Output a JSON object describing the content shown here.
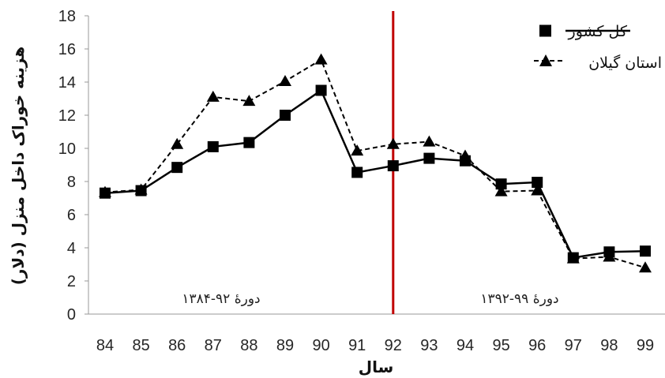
{
  "chart_data": {
    "type": "line",
    "xlabel": "سال",
    "ylabel": "هزینه خوراک داخل منزل (دلار)",
    "x": [
      "84",
      "85",
      "86",
      "87",
      "88",
      "89",
      "90",
      "91",
      "92",
      "93",
      "94",
      "95",
      "96",
      "97",
      "98",
      "99"
    ],
    "ylim": [
      0,
      18
    ],
    "yticks": [
      "0",
      "2",
      "4",
      "6",
      "8",
      "10",
      "12",
      "14",
      "16",
      "18"
    ],
    "grid": false,
    "legend_position": "top-right",
    "series": [
      {
        "name": "کل کشور",
        "marker": "square",
        "line": "solid",
        "color": "#000000",
        "values": [
          7.3,
          7.45,
          8.85,
          10.1,
          10.35,
          12.0,
          13.5,
          8.55,
          8.95,
          9.4,
          9.25,
          7.85,
          7.95,
          3.4,
          3.75,
          3.8
        ]
      },
      {
        "name": "استان گیلان",
        "marker": "triangle",
        "line": "dashed",
        "color": "#000000",
        "values": [
          7.35,
          7.5,
          10.25,
          13.1,
          12.85,
          14.05,
          15.35,
          9.85,
          10.25,
          10.4,
          9.55,
          7.4,
          7.45,
          3.35,
          3.45,
          2.8
        ]
      }
    ],
    "divider": {
      "x": "92",
      "color": "#c00000"
    },
    "annotations": [
      "دورۀ ۹۲-۱۳۸۴",
      "دورۀ ۹۹-۱۳۹۲"
    ]
  }
}
